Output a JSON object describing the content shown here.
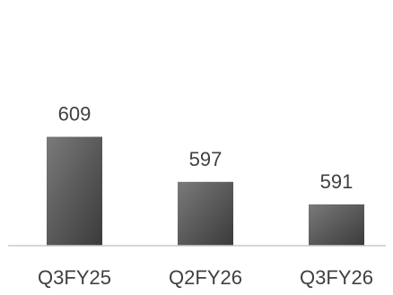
{
  "chart_data": {
    "type": "bar",
    "categories": [
      "Q3FY25",
      "Q2FY26",
      "Q3FY26"
    ],
    "values": [
      609,
      597,
      591
    ],
    "data_labels": [
      "609",
      "597",
      "591"
    ],
    "title": "",
    "xlabel": "",
    "ylabel": "",
    "ylim": [
      580,
      612
    ],
    "grid": false,
    "legend": "none",
    "bar_color": "#555555",
    "axis_color": "#c8c8c8",
    "text_color": "#404040"
  }
}
